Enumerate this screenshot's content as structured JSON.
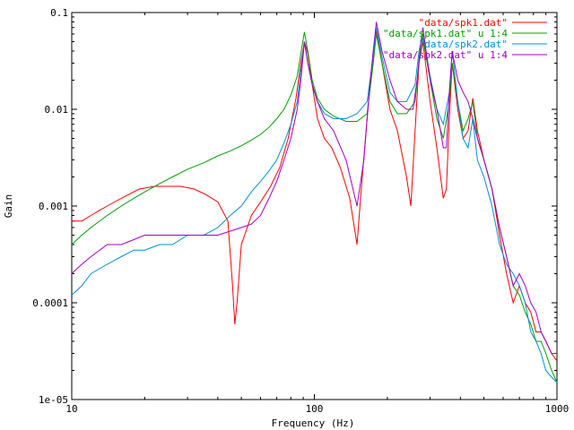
{
  "chart_data": {
    "type": "line",
    "xlabel": "Frequency (Hz)",
    "ylabel": "Gain",
    "xscale": "log",
    "yscale": "log",
    "xlim": [
      10,
      1000
    ],
    "ylim": [
      1e-05,
      0.1
    ],
    "grid": false,
    "legend_position": "top-right",
    "x_ticks": [
      {
        "value": 10,
        "label": "10"
      },
      {
        "value": 100,
        "label": "100"
      },
      {
        "value": 1000,
        "label": "1000"
      }
    ],
    "y_ticks": [
      {
        "value": 0.1,
        "label": "0.1"
      },
      {
        "value": 0.01,
        "label": "0.01"
      },
      {
        "value": 0.001,
        "label": "0.001"
      },
      {
        "value": 0.0001,
        "label": "0.0001"
      },
      {
        "value": 1e-05,
        "label": "1e-05"
      }
    ],
    "series": [
      {
        "name": "\"data/spk1.dat\"",
        "color": "#ff0000",
        "x": [
          10,
          11,
          12,
          13,
          14,
          15,
          17,
          19,
          22,
          25,
          28,
          32,
          36,
          40,
          44,
          46,
          47,
          48,
          50,
          55,
          60,
          66,
          72,
          78,
          84,
          88,
          91,
          94,
          98,
          103,
          110,
          118,
          128,
          140,
          150,
          155,
          165,
          175,
          180,
          190,
          205,
          220,
          240,
          250,
          260,
          270,
          280,
          300,
          320,
          340,
          350,
          360,
          370,
          390,
          410,
          430,
          450,
          470,
          500,
          540,
          580,
          620,
          660,
          700,
          740,
          780,
          820,
          860,
          900,
          950,
          1000
        ],
        "y": [
          0.0007,
          0.0007,
          0.0008,
          0.0009,
          0.001,
          0.0011,
          0.0013,
          0.0015,
          0.0016,
          0.0016,
          0.0016,
          0.0015,
          0.0013,
          0.0011,
          0.0007,
          0.00015,
          6e-05,
          0.0001,
          0.0004,
          0.0008,
          0.0011,
          0.0016,
          0.0025,
          0.005,
          0.013,
          0.03,
          0.05,
          0.038,
          0.018,
          0.008,
          0.005,
          0.004,
          0.0025,
          0.0012,
          0.0004,
          0.0012,
          0.008,
          0.04,
          0.065,
          0.03,
          0.01,
          0.006,
          0.002,
          0.001,
          0.006,
          0.03,
          0.05,
          0.012,
          0.004,
          0.0012,
          0.0015,
          0.008,
          0.03,
          0.01,
          0.005,
          0.006,
          0.013,
          0.006,
          0.003,
          0.0015,
          0.0005,
          0.0002,
          0.0001,
          0.00015,
          0.0001,
          8e-05,
          5e-05,
          5e-05,
          4e-05,
          3e-05,
          2.5e-05
        ]
      },
      {
        "name": "\"data/spk1.dat\" u 1:4",
        "color": "#00a000",
        "x": [
          10,
          11,
          12,
          14,
          16,
          18,
          20,
          23,
          26,
          30,
          35,
          40,
          45,
          50,
          55,
          60,
          65,
          70,
          75,
          80,
          85,
          88,
          91,
          94,
          98,
          103,
          110,
          120,
          135,
          150,
          165,
          175,
          180,
          190,
          205,
          220,
          240,
          260,
          270,
          280,
          300,
          320,
          340,
          360,
          370,
          390,
          410,
          430,
          450,
          470,
          500,
          540,
          580,
          620,
          660,
          700,
          740,
          780,
          820,
          860,
          900,
          950,
          1000
        ],
        "y": [
          0.0004,
          0.0005,
          0.0006,
          0.0008,
          0.001,
          0.0012,
          0.0014,
          0.0017,
          0.002,
          0.0024,
          0.0028,
          0.0033,
          0.0037,
          0.0042,
          0.0048,
          0.0055,
          0.0065,
          0.008,
          0.01,
          0.014,
          0.022,
          0.038,
          0.063,
          0.04,
          0.02,
          0.013,
          0.01,
          0.0085,
          0.0075,
          0.0075,
          0.009,
          0.03,
          0.06,
          0.03,
          0.012,
          0.009,
          0.009,
          0.012,
          0.03,
          0.055,
          0.02,
          0.008,
          0.005,
          0.012,
          0.03,
          0.012,
          0.006,
          0.008,
          0.012,
          0.005,
          0.003,
          0.0015,
          0.0006,
          0.0003,
          0.00015,
          0.00012,
          8e-05,
          6e-05,
          4e-05,
          4e-05,
          3e-05,
          2e-05,
          1.5e-05
        ]
      },
      {
        "name": "\"data/spk2.dat\"",
        "color": "#0090d8",
        "x": [
          10,
          11,
          12,
          14,
          16,
          18,
          20,
          23,
          26,
          30,
          35,
          40,
          45,
          50,
          55,
          60,
          65,
          70,
          75,
          80,
          85,
          88,
          91,
          94,
          98,
          103,
          110,
          120,
          135,
          150,
          165,
          175,
          180,
          190,
          205,
          220,
          240,
          260,
          270,
          280,
          300,
          320,
          340,
          360,
          370,
          390,
          410,
          430,
          450,
          470,
          500,
          540,
          580,
          620,
          660,
          700,
          740,
          780,
          820,
          860,
          900,
          950,
          1000
        ],
        "y": [
          0.00012,
          0.00015,
          0.0002,
          0.00025,
          0.0003,
          0.00035,
          0.00035,
          0.0004,
          0.0004,
          0.0005,
          0.0005,
          0.0006,
          0.0008,
          0.001,
          0.0014,
          0.0018,
          0.0023,
          0.003,
          0.0045,
          0.007,
          0.012,
          0.025,
          0.05,
          0.03,
          0.018,
          0.012,
          0.009,
          0.008,
          0.008,
          0.009,
          0.012,
          0.035,
          0.07,
          0.035,
          0.015,
          0.012,
          0.012,
          0.018,
          0.04,
          0.06,
          0.022,
          0.01,
          0.007,
          0.015,
          0.04,
          0.012,
          0.005,
          0.004,
          0.008,
          0.003,
          0.002,
          0.001,
          0.0004,
          0.00025,
          0.0002,
          0.00015,
          0.0001,
          5e-05,
          4e-05,
          3e-05,
          2e-05,
          1.7e-05,
          1.5e-05
        ]
      },
      {
        "name": "\"data/spk2.dat\" u 1:4",
        "color": "#a000c8",
        "x": [
          10,
          11,
          12,
          14,
          16,
          18,
          20,
          23,
          26,
          30,
          35,
          40,
          45,
          50,
          55,
          60,
          65,
          70,
          75,
          80,
          85,
          88,
          91,
          94,
          98,
          103,
          110,
          120,
          135,
          150,
          160,
          170,
          180,
          190,
          205,
          220,
          240,
          255,
          265,
          275,
          280,
          300,
          320,
          340,
          350,
          360,
          370,
          390,
          410,
          430,
          450,
          470,
          500,
          540,
          580,
          620,
          660,
          700,
          740,
          780,
          820,
          860,
          900,
          950,
          1000
        ],
        "y": [
          0.0002,
          0.00025,
          0.0003,
          0.0004,
          0.0004,
          0.00045,
          0.0005,
          0.0005,
          0.0005,
          0.0005,
          0.0005,
          0.0005,
          0.00055,
          0.0006,
          0.00065,
          0.0008,
          0.0012,
          0.0018,
          0.003,
          0.005,
          0.01,
          0.02,
          0.05,
          0.03,
          0.018,
          0.012,
          0.008,
          0.006,
          0.003,
          0.001,
          0.003,
          0.02,
          0.08,
          0.04,
          0.02,
          0.012,
          0.01,
          0.01,
          0.02,
          0.05,
          0.07,
          0.02,
          0.01,
          0.004,
          0.004,
          0.015,
          0.04,
          0.02,
          0.015,
          0.012,
          0.008,
          0.005,
          0.003,
          0.0015,
          0.0006,
          0.0003,
          0.00015,
          0.0002,
          0.00015,
          0.0001,
          8e-05,
          5e-05,
          4e-05,
          3e-05,
          3e-05
        ]
      }
    ]
  }
}
